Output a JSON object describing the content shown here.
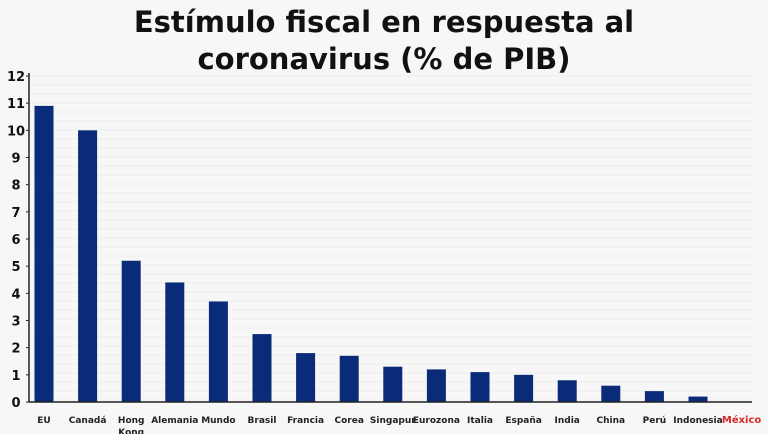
{
  "chart_data": {
    "type": "bar",
    "title_lines": [
      "Estímulo fiscal en respuesta al",
      "coronavirus (% de PIB)"
    ],
    "categories": [
      "EU",
      "Canadá",
      "Hong Kong",
      "Alemania",
      "Mundo",
      "Brasil",
      "Francia",
      "Corea",
      "Singapur",
      "Eurozona",
      "Italia",
      "España",
      "India",
      "China",
      "Perú",
      "Indonesia",
      "México"
    ],
    "values": [
      10.9,
      10.0,
      5.2,
      4.4,
      3.7,
      2.5,
      1.8,
      1.7,
      1.3,
      1.2,
      1.1,
      1.0,
      0.8,
      0.6,
      0.4,
      0.2,
      0
    ],
    "highlight_category": "México",
    "ylim": [
      0,
      12
    ],
    "yticks": [
      0,
      1,
      2,
      3,
      4,
      5,
      6,
      7,
      8,
      9,
      10,
      11,
      12
    ],
    "xlabel": "",
    "ylabel": "",
    "grid": true,
    "colors": {
      "bar": "#0a2a7a",
      "highlight_label": "#d42a2a",
      "text": "#111111"
    }
  }
}
